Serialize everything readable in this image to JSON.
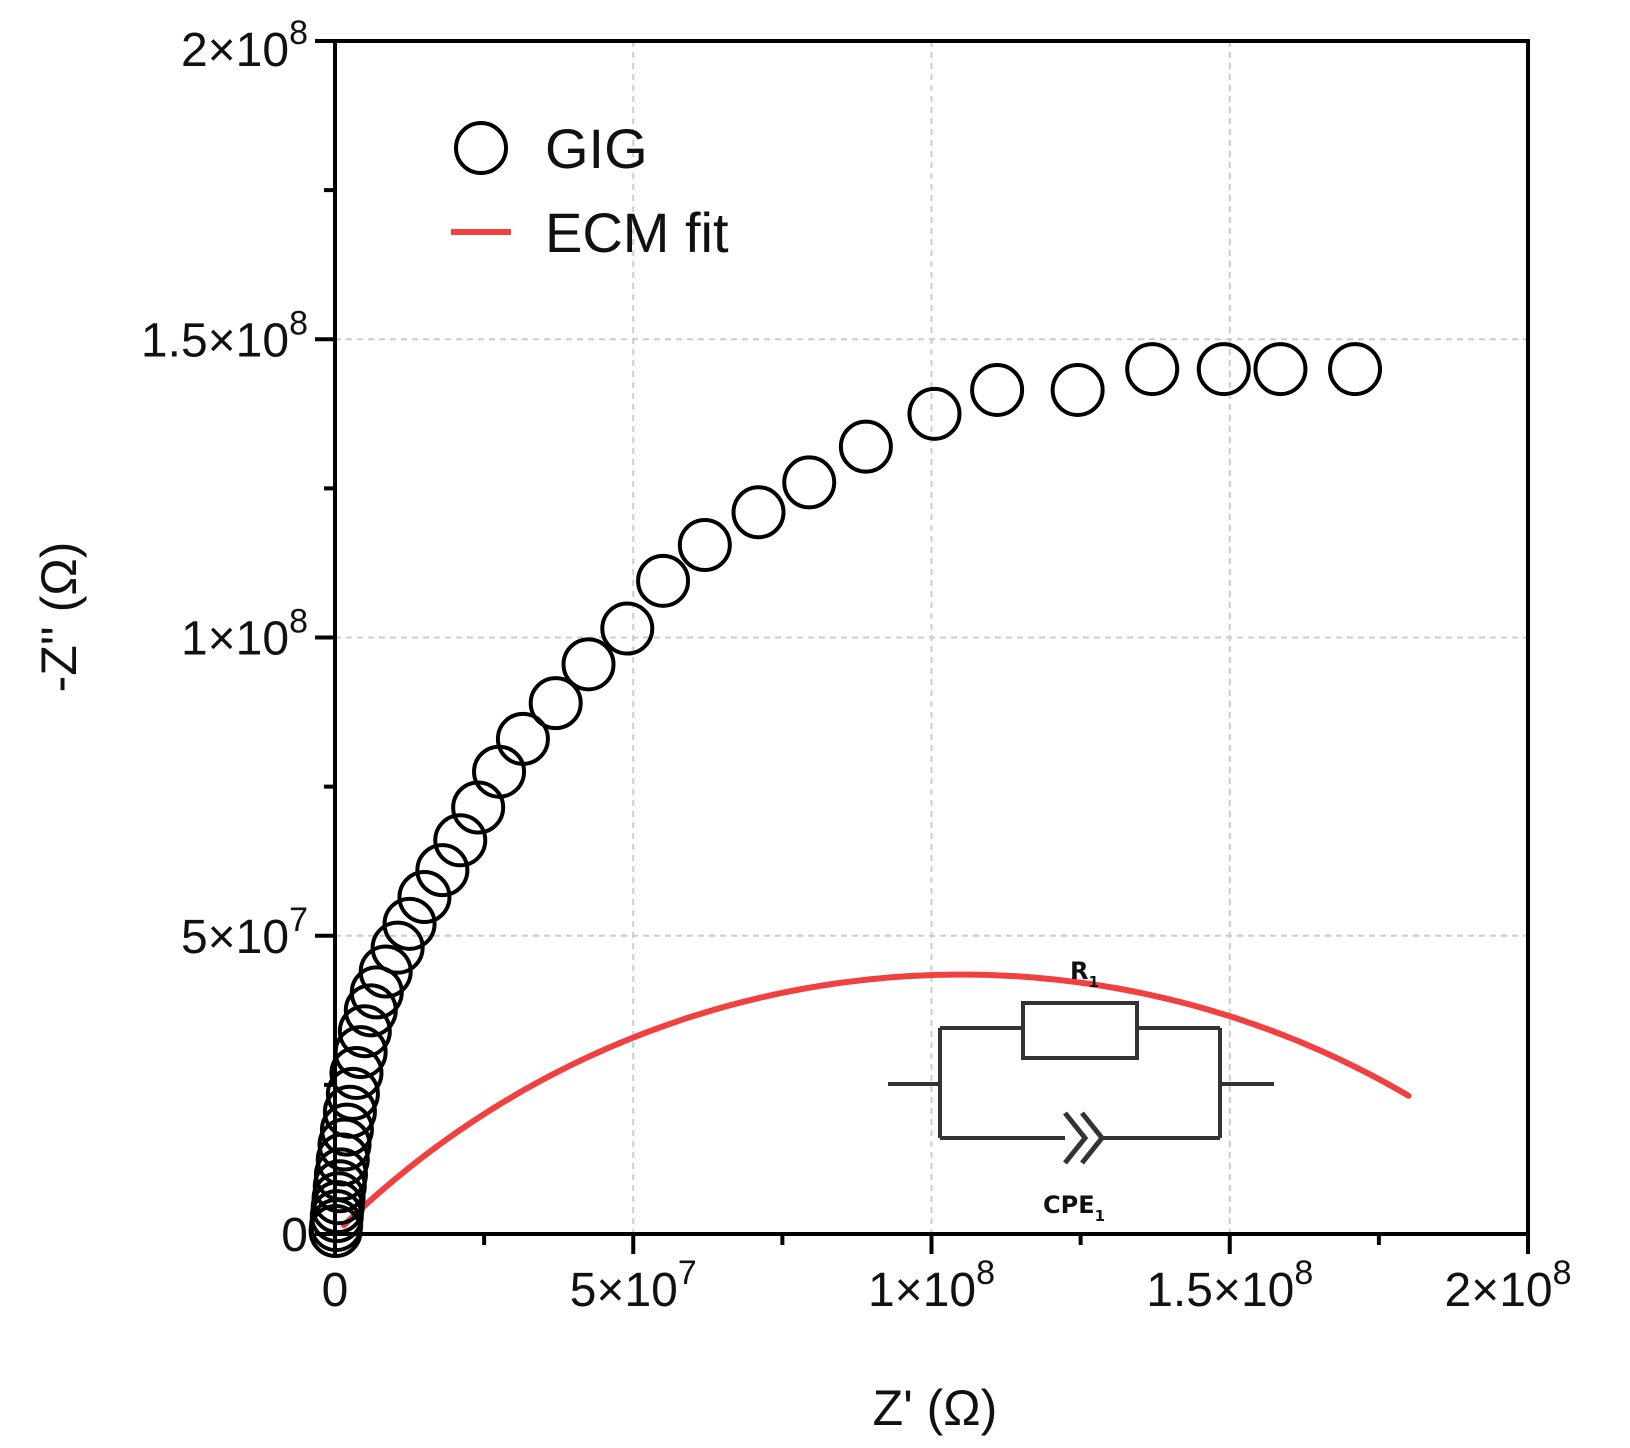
{
  "chart_data": {
    "type": "scatter",
    "title": "",
    "xlabel": "Z' (Ω)",
    "ylabel": "-Z'' (Ω)",
    "xlim": [
      0,
      200000000
    ],
    "ylim": [
      0,
      200000000
    ],
    "grid": true,
    "legend_position": "top-left",
    "x_ticks": [
      {
        "value": 0,
        "label": "0"
      },
      {
        "value": 50000000,
        "label": "5×10",
        "exp": "7"
      },
      {
        "value": 100000000,
        "label": "1×10",
        "exp": "8"
      },
      {
        "value": 150000000,
        "label": "1.5×10",
        "exp": "8"
      },
      {
        "value": 200000000,
        "label": "2×10",
        "exp": "8"
      }
    ],
    "y_ticks": [
      {
        "value": 0,
        "label": "0"
      },
      {
        "value": 50000000,
        "label": "5×10",
        "exp": "7"
      },
      {
        "value": 100000000,
        "label": "1×10",
        "exp": "8"
      },
      {
        "value": 150000000,
        "label": "1.5×10",
        "exp": "8"
      },
      {
        "value": 200000000,
        "label": "2×10",
        "exp": "8"
      }
    ],
    "series": [
      {
        "name": "GIG",
        "kind": "scatter",
        "marker": "open-circle",
        "color": "#000000",
        "x": [
          100000,
          200000,
          300000,
          450000,
          600000,
          800000,
          1000000,
          1300000,
          1600000,
          2000000,
          2500000,
          3000000,
          3600000,
          4300000,
          5000000,
          6000000,
          7000000,
          8500000,
          10500000,
          12500000,
          15000000,
          18000000,
          21000000,
          24000000,
          27500000,
          31500000,
          37000000,
          42500000,
          49000000,
          55000000,
          62000000,
          71000000,
          79500000,
          89000000,
          100500000,
          111000000,
          124500000,
          137000000,
          149000000,
          158500000,
          171000000
        ],
        "y": [
          500000,
          1500000,
          3000000,
          4500000,
          6000000,
          8000000,
          10000000,
          12500000,
          15000000,
          17500000,
          20500000,
          23500000,
          27000000,
          30500000,
          34000000,
          37500000,
          40500000,
          44000000,
          48000000,
          52000000,
          56500000,
          61000000,
          66000000,
          71500000,
          77500000,
          83000000,
          89000000,
          95500000,
          101500000,
          109500000,
          115500000,
          121000000,
          126000000,
          132000000,
          137500000,
          141500000,
          141500000,
          145000000,
          145000000,
          145000000,
          145000000
        ]
      },
      {
        "name": "ECM fit",
        "kind": "line",
        "color": "#f04040",
        "model": {
          "R1": 210000000,
          "Q_alpha": 0.5
        },
        "x_end": 180000000
      }
    ],
    "inset": {
      "type": "equivalent-circuit",
      "resistor_label": "R",
      "resistor_subscript": "1",
      "cpe_label": "CPE",
      "cpe_subscript": "1"
    }
  }
}
